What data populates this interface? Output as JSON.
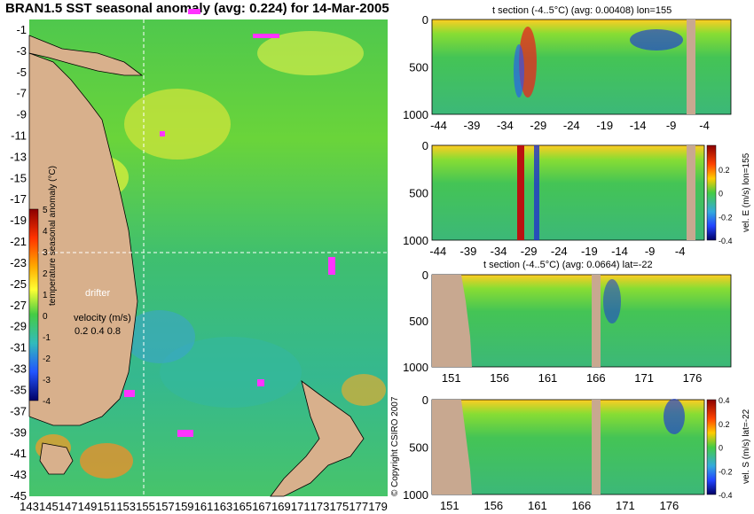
{
  "page": {
    "title": "BRAN1.5 SST seasonal anomaly (avg: 0.224) for 14-Mar-2005",
    "copyright": "© Copyright CSIRO 2007"
  },
  "colors": {
    "land": "#d8b08c",
    "background": "#ffffff",
    "ocean_mid": "#4ecb5a",
    "drifter": "#ff33ff",
    "crosshair": "#ffffff"
  },
  "chart_data": [
    {
      "id": "map",
      "type": "heatmap",
      "title": "BRAN1.5 SST seasonal anomaly (avg: 0.224) for 14-Mar-2005",
      "xlim": [
        143,
        180
      ],
      "ylim": [
        -45,
        0
      ],
      "x_ticks": [
        "143",
        "145",
        "147",
        "149",
        "151",
        "153",
        "155",
        "157",
        "159",
        "161",
        "163",
        "165",
        "167",
        "169",
        "171",
        "173",
        "175",
        "177",
        "179"
      ],
      "y_ticks": [
        "-1",
        "-3",
        "-5",
        "-7",
        "-9",
        "-11",
        "-13",
        "-15",
        "-17",
        "-19",
        "-21",
        "-23",
        "-25",
        "-27",
        "-29",
        "-31",
        "-33",
        "-35",
        "-37",
        "-39",
        "-41",
        "-43",
        "-45"
      ],
      "crosshair": {
        "lon": 155,
        "lat": -22
      },
      "legend_label": "drifter",
      "velocity_label": "velocity (m/s)",
      "velocity_scale": [
        "0.2",
        "0.4",
        "0.8"
      ],
      "colorbar": {
        "label": "temperature seasonal anomaly (°C)",
        "min": -4,
        "max": 5,
        "ticks": [
          "5",
          "4",
          "3",
          "2",
          "1",
          "0",
          "-1",
          "-2",
          "-3",
          "-4"
        ]
      }
    },
    {
      "id": "t-section-lon",
      "type": "heatmap",
      "title": "t section (-4..5°C) (avg: 0.00408) lon=155",
      "xlim": [
        -45,
        0
      ],
      "x_ticks": [
        "-44",
        "-39",
        "-34",
        "-29",
        "-24",
        "-19",
        "-14",
        "-9",
        "-4"
      ],
      "ylim": [
        1000,
        0
      ],
      "y_ticks": [
        "0",
        "500",
        "1000"
      ]
    },
    {
      "id": "vel-e-section",
      "type": "heatmap",
      "title": "",
      "xlim": [
        -45,
        0
      ],
      "x_ticks": [
        "-44",
        "-39",
        "-34",
        "-29",
        "-24",
        "-19",
        "-14",
        "-9",
        "-4"
      ],
      "ylim": [
        1000,
        0
      ],
      "y_ticks": [
        "0",
        "500",
        "1000"
      ],
      "colorbar": {
        "label": "vel. E (m/s) lon=155",
        "min": -0.4,
        "max": 0.4,
        "ticks": [
          "0.2",
          "0",
          "-0.2",
          "-0.4"
        ]
      }
    },
    {
      "id": "t-section-lat",
      "type": "heatmap",
      "title": "t section (-4..5°C) (avg: 0.0664) lat=-22",
      "xlim": [
        149,
        180
      ],
      "x_ticks": [
        "151",
        "156",
        "161",
        "166",
        "171",
        "176"
      ],
      "ylim": [
        1000,
        0
      ],
      "y_ticks": [
        "0",
        "500",
        "1000"
      ]
    },
    {
      "id": "vel-s-section",
      "type": "heatmap",
      "title": "",
      "xlim": [
        149,
        180
      ],
      "x_ticks": [
        "151",
        "156",
        "161",
        "166",
        "171",
        "176"
      ],
      "ylim": [
        1000,
        0
      ],
      "y_ticks": [
        "0",
        "500",
        "1000"
      ],
      "colorbar": {
        "label": "vel. S (m/s) lat=-22",
        "min": -0.4,
        "max": 0.4,
        "ticks": [
          "0.4",
          "0.2",
          "0",
          "-0.2",
          "-0.4"
        ]
      }
    }
  ]
}
